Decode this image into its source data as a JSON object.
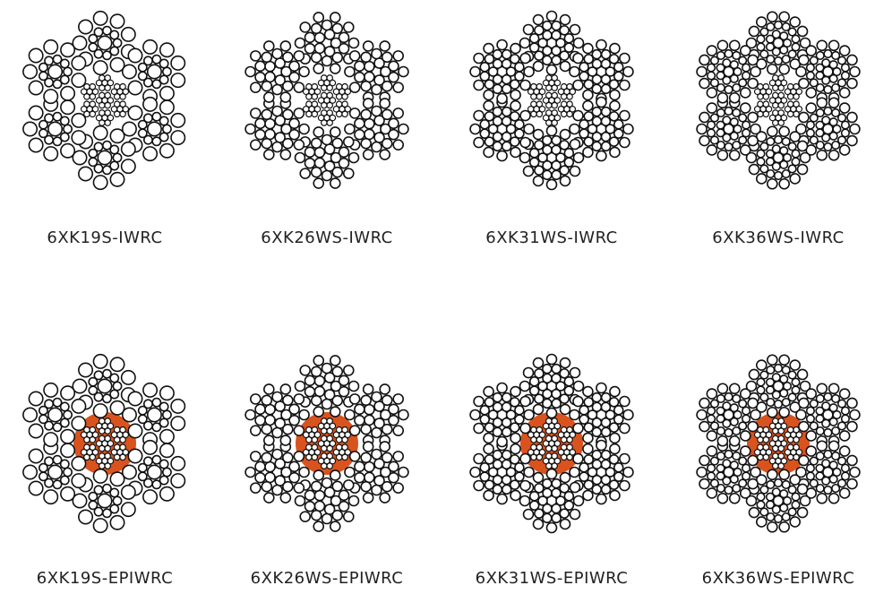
{
  "colors": {
    "wire_stroke": "#111111",
    "wire_fill": "#ffffff",
    "core_plastic": "#d9531e"
  },
  "ropes": [
    {
      "label": "6XK19S-IWRC",
      "core": "IWRC",
      "wires_per_ring": [
        1,
        9,
        9
      ]
    },
    {
      "label": "6XK26WS-IWRC",
      "core": "IWRC",
      "wires_per_ring": [
        1,
        5,
        10,
        10
      ]
    },
    {
      "label": "6XK31WS-IWRC",
      "core": "IWRC",
      "wires_per_ring": [
        1,
        6,
        12,
        12
      ]
    },
    {
      "label": "6XK36WS-IWRC",
      "core": "IWRC",
      "wires_per_ring": [
        1,
        7,
        14,
        14
      ]
    },
    {
      "label": "6XK19S-EPIWRC",
      "core": "EPIWRC",
      "wires_per_ring": [
        1,
        9,
        9
      ]
    },
    {
      "label": "6XK26WS-EPIWRC",
      "core": "EPIWRC",
      "wires_per_ring": [
        1,
        5,
        10,
        10
      ]
    },
    {
      "label": "6XK31WS-EPIWRC",
      "core": "EPIWRC",
      "wires_per_ring": [
        1,
        6,
        12,
        12
      ]
    },
    {
      "label": "6XK36WS-EPIWRC",
      "core": "EPIWRC",
      "wires_per_ring": [
        1,
        7,
        14,
        14
      ]
    }
  ]
}
